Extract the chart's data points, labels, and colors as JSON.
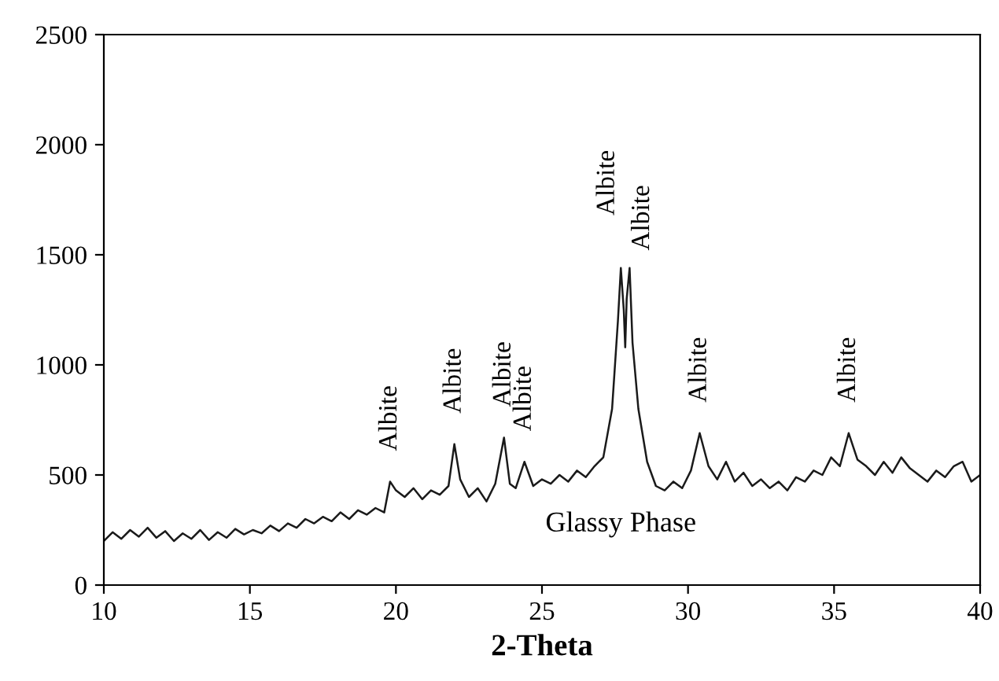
{
  "chart_data": {
    "type": "line",
    "xlabel": "2-Theta",
    "xlim": [
      10,
      40
    ],
    "xticks": [
      10,
      15,
      20,
      25,
      30,
      35,
      40
    ],
    "ylim": [
      0,
      2500
    ],
    "yticks": [
      0,
      500,
      1000,
      1500,
      2000,
      2500
    ],
    "grid": false,
    "legend": false,
    "series": [
      {
        "color": "#1a1a1a",
        "x": [
          10.0,
          10.3,
          10.6,
          10.9,
          11.2,
          11.5,
          11.8,
          12.1,
          12.4,
          12.7,
          13.0,
          13.3,
          13.6,
          13.9,
          14.2,
          14.5,
          14.8,
          15.1,
          15.4,
          15.7,
          16.0,
          16.3,
          16.6,
          16.9,
          17.2,
          17.5,
          17.8,
          18.1,
          18.4,
          18.7,
          19.0,
          19.3,
          19.6,
          19.8,
          20.0,
          20.3,
          20.6,
          20.9,
          21.2,
          21.5,
          21.8,
          22.0,
          22.2,
          22.5,
          22.8,
          23.1,
          23.4,
          23.7,
          23.9,
          24.1,
          24.4,
          24.7,
          25.0,
          25.3,
          25.6,
          25.9,
          26.2,
          26.5,
          26.8,
          27.1,
          27.4,
          27.6,
          27.7,
          27.8,
          27.85,
          27.9,
          28.0,
          28.1,
          28.3,
          28.6,
          28.9,
          29.2,
          29.5,
          29.8,
          30.1,
          30.4,
          30.7,
          31.0,
          31.3,
          31.6,
          31.9,
          32.2,
          32.5,
          32.8,
          33.1,
          33.4,
          33.7,
          34.0,
          34.3,
          34.6,
          34.9,
          35.2,
          35.5,
          35.8,
          36.1,
          36.4,
          36.7,
          37.0,
          37.3,
          37.6,
          37.9,
          38.2,
          38.5,
          38.8,
          39.1,
          39.4,
          39.7,
          40.0
        ],
        "values": [
          200,
          240,
          210,
          250,
          220,
          260,
          215,
          245,
          200,
          235,
          210,
          250,
          205,
          240,
          215,
          255,
          230,
          250,
          235,
          270,
          245,
          280,
          260,
          300,
          280,
          310,
          290,
          330,
          300,
          340,
          320,
          350,
          330,
          470,
          430,
          400,
          440,
          390,
          430,
          410,
          450,
          640,
          480,
          400,
          440,
          380,
          460,
          670,
          460,
          440,
          560,
          450,
          480,
          460,
          500,
          470,
          520,
          490,
          540,
          580,
          800,
          1200,
          1440,
          1250,
          1080,
          1300,
          1440,
          1100,
          800,
          560,
          450,
          430,
          470,
          440,
          520,
          690,
          540,
          480,
          560,
          470,
          510,
          450,
          480,
          440,
          470,
          430,
          490,
          470,
          520,
          500,
          580,
          540,
          690,
          570,
          540,
          500,
          560,
          510,
          580,
          530,
          500,
          470,
          520,
          490,
          540,
          560,
          470,
          500
        ]
      }
    ],
    "annotations": [
      {
        "text": "Albite",
        "x": 19.8,
        "y": 470
      },
      {
        "text": "Albite",
        "x": 22.0,
        "y": 640
      },
      {
        "text": "Albite",
        "x": 23.7,
        "y": 670
      },
      {
        "text": "Albite",
        "x": 24.4,
        "y": 560
      },
      {
        "text": "Albite",
        "x": 27.7,
        "y": 1440
      },
      {
        "text": "Albite",
        "x": 28.0,
        "y": 1440
      },
      {
        "text": "Albite",
        "x": 30.4,
        "y": 690
      },
      {
        "text": "Albite",
        "x": 35.5,
        "y": 690
      },
      "Glassy Phase"
    ]
  }
}
